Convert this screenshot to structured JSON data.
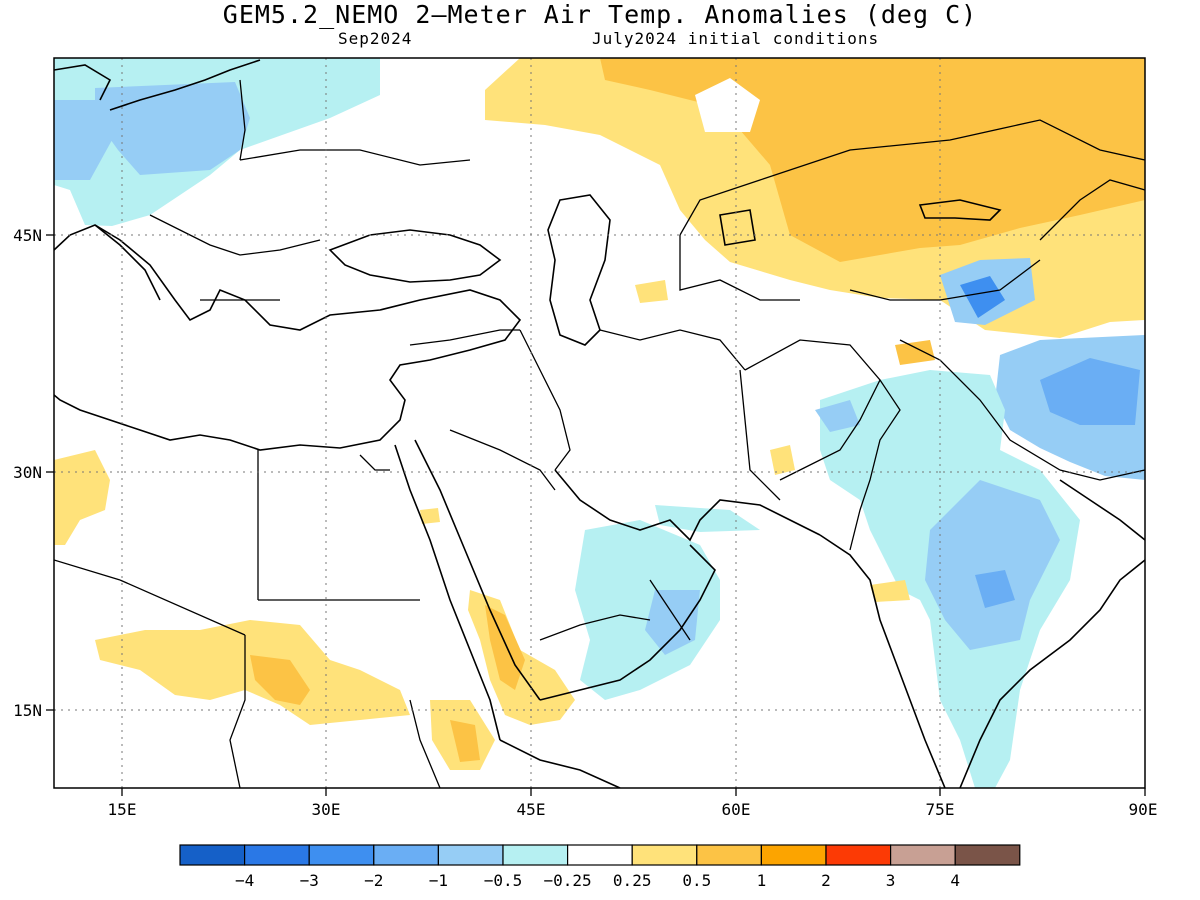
{
  "title": "GEM5.2_NEMO 2—Meter Air Temp. Anomalies (deg C)",
  "subtitle_left": "Sep2024",
  "subtitle_right": "July2024 initial conditions",
  "lon_ticks": [
    "15E",
    "30E",
    "45E",
    "60E",
    "75E",
    "90E"
  ],
  "lat_ticks": [
    "45N",
    "30N",
    "15N"
  ],
  "colorbar": {
    "colors": [
      "#1560c8",
      "#2a78e6",
      "#3e8ff0",
      "#6aaef4",
      "#96cdf5",
      "#b6f0f2",
      "#ffffff",
      "#ffe27a",
      "#fcc345",
      "#fca400",
      "#fc3a05",
      "#c8a094",
      "#7a5448"
    ],
    "labels": [
      "−4",
      "−3",
      "−2",
      "−1",
      "−0.5",
      "−0.25",
      "0.25",
      "0.5",
      "1",
      "2",
      "3",
      "4"
    ]
  },
  "anomaly_colors": {
    "cold_light": "#b6f0f2",
    "cold_mid": "#96cdf5",
    "cold_strong": "#6aaef4",
    "cold_core": "#3e8ff0",
    "warm_light": "#ffe27a",
    "warm_mid": "#fcc345"
  }
}
